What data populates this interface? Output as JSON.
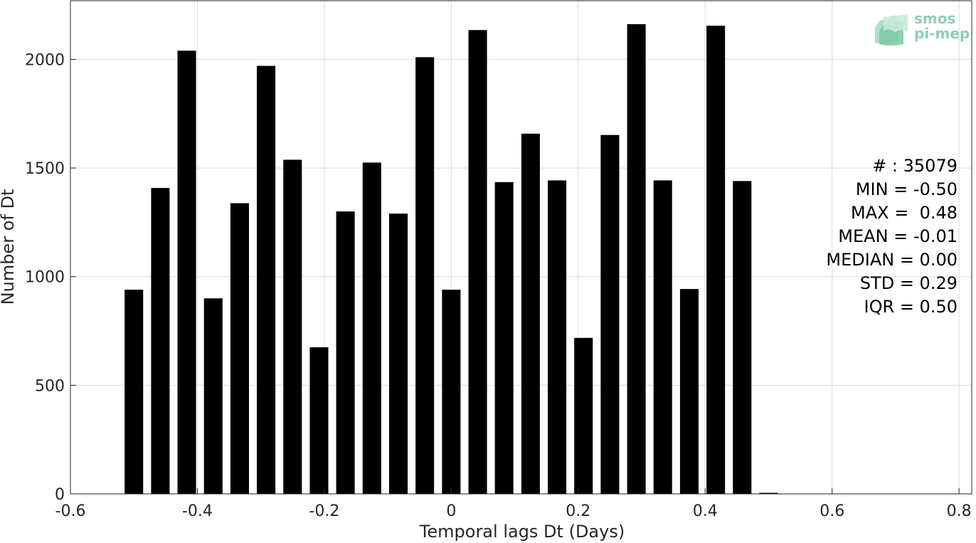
{
  "logo": {
    "line1": "smos",
    "line2": "pi-mep"
  },
  "stats": {
    "lines": [
      "# : 35079",
      "MIN = -0.50",
      "MAX =  0.48",
      "MEAN = -0.01",
      "MEDIAN = 0.00",
      "STD = 0.29",
      "IQR = 0.50"
    ]
  },
  "chart_data": {
    "type": "bar",
    "title": "",
    "xlabel": "Temporal lags Dt (Days)",
    "ylabel": "Number of Dt",
    "xlim": [
      -0.6,
      0.82
    ],
    "ylim": [
      0,
      2270
    ],
    "grid": true,
    "bar_color": "#000000",
    "grid_color": "#dcdcdc",
    "x_ticks": [
      -0.6,
      -0.4,
      -0.2,
      0,
      0.2,
      0.4,
      0.6,
      0.8
    ],
    "x_tick_labels": [
      "-0.6",
      "-0.4",
      "-0.2",
      "0",
      "0.2",
      "0.4",
      "0.6",
      "0.8"
    ],
    "y_ticks": [
      0,
      500,
      1000,
      1500,
      2000
    ],
    "y_tick_labels": [
      "0",
      "500",
      "1000",
      "1500",
      "2000"
    ],
    "bar_width": 0.0292,
    "x": [
      -0.5,
      -0.4583,
      -0.4167,
      -0.375,
      -0.3333,
      -0.2917,
      -0.25,
      -0.2083,
      -0.1667,
      -0.125,
      -0.0833,
      -0.0417,
      0.0,
      0.0417,
      0.0833,
      0.125,
      0.1667,
      0.2083,
      0.25,
      0.2917,
      0.3333,
      0.375,
      0.4167,
      0.4583,
      0.5
    ],
    "values": [
      940,
      1408,
      2040,
      900,
      1338,
      1970,
      1538,
      675,
      1300,
      1525,
      1290,
      2010,
      940,
      2135,
      1435,
      1658,
      1443,
      718,
      1652,
      2162,
      1443,
      943,
      2155,
      1440,
      5
    ]
  }
}
